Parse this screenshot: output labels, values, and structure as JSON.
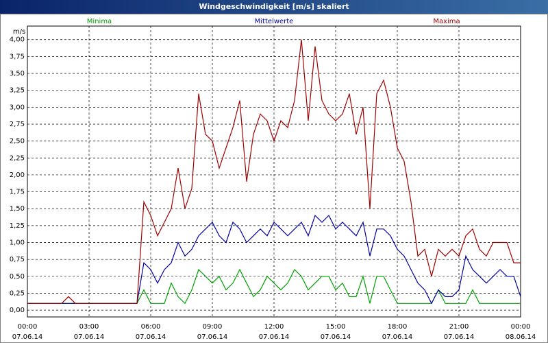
{
  "chart_data": {
    "type": "line",
    "title": "Windgeschwindigkeit [m/s] skaliert",
    "y_label": "m/s",
    "x": [
      0,
      20,
      40,
      60,
      80,
      100,
      120,
      140,
      160,
      180,
      200,
      220,
      240,
      260,
      280,
      300,
      320,
      340,
      360,
      380,
      400,
      420,
      440,
      460,
      480,
      500,
      520,
      540,
      560,
      580,
      600,
      620,
      640,
      660,
      680,
      700,
      720,
      740,
      760,
      780,
      800,
      820,
      840,
      860,
      880,
      900,
      920,
      940,
      960,
      980,
      1000,
      1020,
      1040,
      1060,
      1080,
      1100,
      1120,
      1140,
      1160,
      1180,
      1200,
      1220,
      1240,
      1260,
      1280,
      1300,
      1320,
      1340,
      1360,
      1380,
      1400,
      1420,
      1440
    ],
    "xlim": [
      0,
      1440
    ],
    "xticks": [
      {
        "value": 0,
        "label": "00:00",
        "date": "07.06.14"
      },
      {
        "value": 180,
        "label": "03:00",
        "date": "07.06.14"
      },
      {
        "value": 360,
        "label": "06:00",
        "date": "07.06.14"
      },
      {
        "value": 540,
        "label": "09:00",
        "date": "07.06.14"
      },
      {
        "value": 720,
        "label": "12:00",
        "date": "07.06.14"
      },
      {
        "value": 900,
        "label": "15:00",
        "date": "07.06.14"
      },
      {
        "value": 1080,
        "label": "18:00",
        "date": "07.06.14"
      },
      {
        "value": 1260,
        "label": "21:00",
        "date": "07.06.14"
      },
      {
        "value": 1440,
        "label": "00:00",
        "date": "08.06.14"
      }
    ],
    "ylim": [
      -0.1,
      4.2
    ],
    "yticks": [
      {
        "value": 0,
        "label": "0,00"
      },
      {
        "value": 0.25,
        "label": "0,25"
      },
      {
        "value": 0.5,
        "label": "0,50"
      },
      {
        "value": 0.75,
        "label": "0,75"
      },
      {
        "value": 1,
        "label": "1,00"
      },
      {
        "value": 1.25,
        "label": "1,25"
      },
      {
        "value": 1.5,
        "label": "1,50"
      },
      {
        "value": 1.75,
        "label": "1,75"
      },
      {
        "value": 2,
        "label": "2,00"
      },
      {
        "value": 2.25,
        "label": "2,25"
      },
      {
        "value": 2.5,
        "label": "2,50"
      },
      {
        "value": 2.75,
        "label": "2,75"
      },
      {
        "value": 3,
        "label": "3,00"
      },
      {
        "value": 3.25,
        "label": "3,25"
      },
      {
        "value": 3.5,
        "label": "3,50"
      },
      {
        "value": 3.75,
        "label": "3,75"
      },
      {
        "value": 4,
        "label": "4,00"
      }
    ],
    "grid": true,
    "series": [
      {
        "name": "Minima",
        "color": "#00a000",
        "values": [
          0.1,
          0.1,
          0.1,
          0.1,
          0.1,
          0.1,
          0.1,
          0.1,
          0.1,
          0.1,
          0.1,
          0.1,
          0.1,
          0.1,
          0.1,
          0.1,
          0.1,
          0.3,
          0.1,
          0.1,
          0.1,
          0.4,
          0.2,
          0.1,
          0.3,
          0.6,
          0.5,
          0.4,
          0.5,
          0.3,
          0.4,
          0.6,
          0.4,
          0.2,
          0.3,
          0.5,
          0.4,
          0.3,
          0.4,
          0.6,
          0.5,
          0.3,
          0.4,
          0.5,
          0.5,
          0.3,
          0.4,
          0.2,
          0.2,
          0.5,
          0.1,
          0.5,
          0.5,
          0.3,
          0.1,
          0.1,
          0.1,
          0.1,
          0.1,
          0.1,
          0.3,
          0.1,
          0.1,
          0.1,
          0.1,
          0.3,
          0.1,
          0.1,
          0.1,
          0.1,
          0.1,
          0.1,
          0.1
        ]
      },
      {
        "name": "Mittelwerte",
        "color": "#0000a0",
        "values": [
          0.1,
          0.1,
          0.1,
          0.1,
          0.1,
          0.1,
          0.1,
          0.1,
          0.1,
          0.1,
          0.1,
          0.1,
          0.1,
          0.1,
          0.1,
          0.1,
          0.1,
          0.7,
          0.6,
          0.4,
          0.6,
          0.7,
          1.0,
          0.8,
          0.9,
          1.1,
          1.2,
          1.3,
          1.1,
          1.0,
          1.3,
          1.2,
          1.0,
          1.1,
          1.2,
          1.1,
          1.3,
          1.2,
          1.1,
          1.2,
          1.3,
          1.1,
          1.4,
          1.3,
          1.4,
          1.2,
          1.3,
          1.2,
          1.1,
          1.3,
          0.8,
          1.2,
          1.2,
          1.1,
          0.9,
          0.8,
          0.6,
          0.4,
          0.3,
          0.1,
          0.3,
          0.2,
          0.2,
          0.3,
          0.8,
          0.6,
          0.5,
          0.4,
          0.5,
          0.6,
          0.5,
          0.5,
          0.2
        ]
      },
      {
        "name": "Maxima",
        "color": "#a00000",
        "values": [
          0.1,
          0.1,
          0.1,
          0.1,
          0.1,
          0.1,
          0.2,
          0.1,
          0.1,
          0.1,
          0.1,
          0.1,
          0.1,
          0.1,
          0.1,
          0.1,
          0.1,
          1.6,
          1.4,
          1.1,
          1.3,
          1.5,
          2.1,
          1.5,
          1.8,
          3.2,
          2.6,
          2.5,
          2.1,
          2.4,
          2.7,
          3.1,
          1.9,
          2.6,
          2.9,
          2.8,
          2.5,
          2.8,
          2.7,
          3.1,
          4.0,
          2.8,
          3.9,
          3.1,
          2.9,
          2.8,
          2.9,
          3.2,
          2.6,
          3.0,
          1.5,
          3.2,
          3.4,
          3.0,
          2.4,
          2.2,
          1.6,
          0.8,
          0.9,
          0.5,
          0.9,
          0.8,
          0.9,
          0.8,
          1.1,
          1.2,
          0.9,
          0.8,
          1.0,
          1.0,
          1.0,
          0.7,
          0.7
        ]
      }
    ]
  }
}
